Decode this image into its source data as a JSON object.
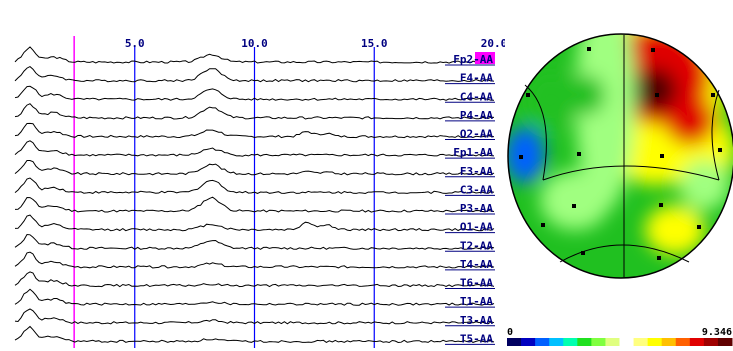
{
  "spectra": {
    "x_max": 20.0,
    "marker_frequency": 0.8,
    "ticks": [
      {
        "value": 5.0,
        "label": "5.0"
      },
      {
        "value": 10.0,
        "label": "10.0"
      },
      {
        "value": 15.0,
        "label": "15.0"
      },
      {
        "value": 20.0,
        "label": "20.0"
      }
    ],
    "channels": [
      {
        "label": "Fp2-AA",
        "selected": true,
        "alpha": 0.35,
        "beta": 0.0
      },
      {
        "label": "F4-AA",
        "alpha": 0.55,
        "beta": 0.0
      },
      {
        "label": "C4-AA",
        "alpha": 0.45,
        "beta": 0.0
      },
      {
        "label": "P4-AA",
        "alpha": 0.5,
        "beta": 0.0
      },
      {
        "label": "O2-AA",
        "alpha": 0.3,
        "beta": 0.35
      },
      {
        "label": "Fp1-AA",
        "alpha": 0.3,
        "beta": 0.0
      },
      {
        "label": "F3-AA",
        "alpha": 0.45,
        "beta": 0.15
      },
      {
        "label": "C3-AA",
        "alpha": 0.55,
        "beta": 0.0
      },
      {
        "label": "P3-AA",
        "alpha": 0.6,
        "beta": 0.0
      },
      {
        "label": "O1-AA",
        "alpha": 0.25,
        "beta": 0.55
      },
      {
        "label": "T2-AA",
        "alpha": 0.35,
        "beta": 0.0
      },
      {
        "label": "T4-AA",
        "alpha": 0.15,
        "beta": 0.0
      },
      {
        "label": "T6-AA",
        "alpha": 0.05,
        "beta": 0.0
      },
      {
        "label": "T1-AA",
        "alpha": 0.1,
        "beta": 0.0
      },
      {
        "label": "T3-AA",
        "alpha": 0.1,
        "beta": 0.0
      },
      {
        "label": "T5-AA",
        "alpha": 0.1,
        "beta": 0.0
      }
    ]
  },
  "topomap": {
    "colorbar": {
      "min_label": "0",
      "max_label": "9.346",
      "colors": [
        "#000060",
        "#0000c0",
        "#0060ff",
        "#00c0ff",
        "#00ffb0",
        "#20e020",
        "#80ff40",
        "#e0ff80",
        "#ffffff",
        "#ffff80",
        "#ffff00",
        "#ffc000",
        "#ff6000",
        "#e00000",
        "#a00000",
        "#600000"
      ]
    },
    "colors": {
      "high": "#500000",
      "red": "#e00000",
      "yellow": "#ffff00",
      "green": "#20c020",
      "light_green": "#a0ff80",
      "blue": "#0060ff"
    }
  }
}
